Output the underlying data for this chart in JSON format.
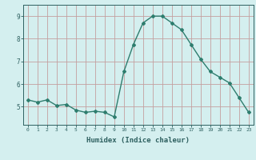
{
  "x": [
    0,
    1,
    2,
    3,
    4,
    5,
    6,
    7,
    8,
    9,
    10,
    11,
    12,
    13,
    14,
    15,
    16,
    17,
    18,
    19,
    20,
    21,
    22,
    23
  ],
  "y": [
    5.3,
    5.2,
    5.3,
    5.05,
    5.1,
    4.85,
    4.75,
    4.8,
    4.75,
    4.55,
    6.55,
    7.75,
    8.7,
    9.0,
    9.0,
    8.7,
    8.4,
    7.75,
    7.1,
    6.55,
    6.3,
    6.05,
    5.4,
    4.75
  ],
  "line_color": "#2e7d6e",
  "marker": "D",
  "markersize": 2.0,
  "linewidth": 1.0,
  "bg_color": "#d4efef",
  "grid_color": "#c4a0a0",
  "tick_color": "#2e6060",
  "xlabel": "Humidex (Indice chaleur)",
  "xlabel_fontsize": 6.5,
  "ylabel_ticks": [
    5,
    6,
    7,
    8,
    9
  ],
  "xlim": [
    -0.5,
    23.5
  ],
  "ylim": [
    4.2,
    9.5
  ]
}
